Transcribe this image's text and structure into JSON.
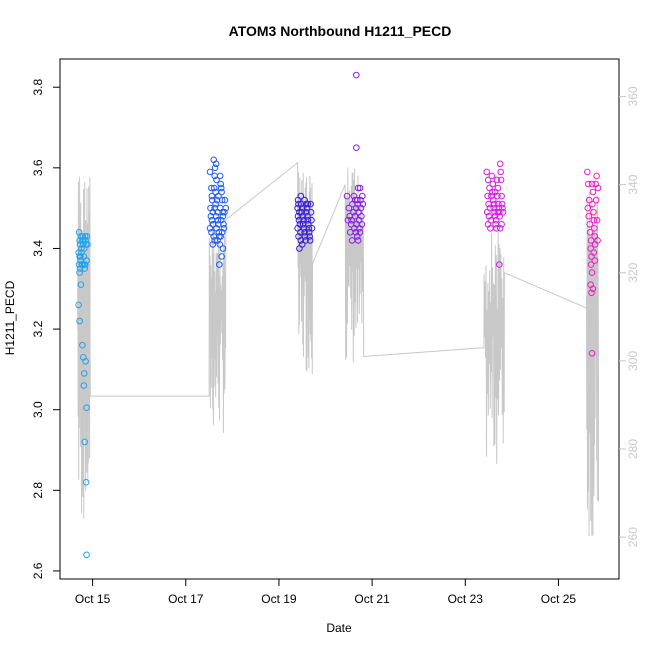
{
  "chart_data": {
    "type": "scatter",
    "title": "ATOM3 Northbound H1211_PECD",
    "xlabel": "Date",
    "ylabel": "H1211_PECD",
    "x_range_days": [
      14.3,
      26.3
    ],
    "x_ticks": [
      {
        "day": 15,
        "label": "Oct 15"
      },
      {
        "day": 17,
        "label": "Oct 17"
      },
      {
        "day": 19,
        "label": "Oct 19"
      },
      {
        "day": 21,
        "label": "Oct 21"
      },
      {
        "day": 23,
        "label": "Oct 23"
      },
      {
        "day": 25,
        "label": "Oct 25"
      }
    ],
    "ylim": [
      2.58,
      3.87
    ],
    "y_ticks": [
      "2.6",
      "2.8",
      "3.0",
      "3.2",
      "3.4",
      "3.6",
      "3.8"
    ],
    "y2lim": [
      250.5,
      368.5
    ],
    "y2_ticks": [
      "260",
      "280",
      "300",
      "320",
      "340",
      "360"
    ],
    "grid": false,
    "series": [
      {
        "color": "#1fa3ee",
        "points": [
          [
            14.71,
            3.44
          ],
          [
            14.72,
            3.42
          ],
          [
            14.73,
            3.41
          ],
          [
            14.7,
            3.39
          ],
          [
            14.72,
            3.38
          ],
          [
            14.74,
            3.37
          ],
          [
            14.71,
            3.36
          ],
          [
            14.73,
            3.35
          ],
          [
            14.75,
            3.43
          ],
          [
            14.76,
            3.4
          ],
          [
            14.77,
            3.36
          ],
          [
            14.78,
            3.42
          ],
          [
            14.79,
            3.43
          ],
          [
            14.8,
            3.41
          ],
          [
            14.81,
            3.38
          ],
          [
            14.82,
            3.36
          ],
          [
            14.83,
            3.35
          ],
          [
            14.84,
            3.43
          ],
          [
            14.85,
            3.42
          ],
          [
            14.86,
            3.41
          ],
          [
            14.87,
            3.37
          ],
          [
            14.88,
            3.43
          ],
          [
            14.89,
            3.41
          ],
          [
            14.72,
            3.34
          ],
          [
            14.74,
            3.38
          ],
          [
            14.76,
            3.39
          ],
          [
            14.78,
            3.36
          ],
          [
            14.8,
            3.42
          ],
          [
            14.82,
            3.4
          ],
          [
            14.84,
            3.36
          ],
          [
            14.7,
            3.26
          ],
          [
            14.72,
            3.22
          ],
          [
            14.75,
            3.31
          ],
          [
            14.78,
            3.16
          ],
          [
            14.8,
            3.13
          ],
          [
            14.82,
            3.09
          ],
          [
            14.81,
            3.06
          ],
          [
            14.85,
            3.12
          ],
          [
            14.87,
            3.005
          ],
          [
            14.83,
            2.92
          ],
          [
            14.86,
            2.82
          ],
          [
            14.87,
            2.64
          ]
        ]
      },
      {
        "color": "#1f5cf2",
        "points": [
          [
            17.52,
            3.59
          ],
          [
            17.55,
            3.55
          ],
          [
            17.57,
            3.52
          ],
          [
            17.53,
            3.5
          ],
          [
            17.58,
            3.49
          ],
          [
            17.54,
            3.48
          ],
          [
            17.56,
            3.47
          ],
          [
            17.59,
            3.46
          ],
          [
            17.52,
            3.45
          ],
          [
            17.55,
            3.44
          ],
          [
            17.6,
            3.43
          ],
          [
            17.62,
            3.42
          ],
          [
            17.58,
            3.41
          ],
          [
            17.61,
            3.55
          ],
          [
            17.63,
            3.6
          ],
          [
            17.6,
            3.62
          ],
          [
            17.65,
            3.61
          ],
          [
            17.66,
            3.57
          ],
          [
            17.64,
            3.54
          ],
          [
            17.67,
            3.52
          ],
          [
            17.62,
            3.5
          ],
          [
            17.68,
            3.49
          ],
          [
            17.65,
            3.48
          ],
          [
            17.69,
            3.47
          ],
          [
            17.7,
            3.46
          ],
          [
            17.66,
            3.45
          ],
          [
            17.71,
            3.44
          ],
          [
            17.72,
            3.43
          ],
          [
            17.68,
            3.42
          ],
          [
            17.73,
            3.41
          ],
          [
            17.74,
            3.58
          ],
          [
            17.75,
            3.56
          ],
          [
            17.76,
            3.55
          ],
          [
            17.77,
            3.54
          ],
          [
            17.78,
            3.52
          ],
          [
            17.74,
            3.5
          ],
          [
            17.79,
            3.49
          ],
          [
            17.8,
            3.48
          ],
          [
            17.76,
            3.47
          ],
          [
            17.81,
            3.46
          ],
          [
            17.82,
            3.45
          ],
          [
            17.78,
            3.44
          ],
          [
            17.75,
            3.43
          ],
          [
            17.8,
            3.4
          ],
          [
            17.77,
            3.38
          ],
          [
            17.72,
            3.36
          ],
          [
            17.84,
            3.52
          ],
          [
            17.86,
            3.5
          ],
          [
            17.83,
            3.49
          ],
          [
            17.62,
            3.58
          ],
          [
            17.56,
            3.53
          ],
          [
            17.7,
            3.53
          ],
          [
            17.64,
            3.51
          ],
          [
            17.58,
            3.46
          ]
        ]
      },
      {
        "color": "#3a1fd2",
        "points": [
          [
            19.4,
            3.5
          ],
          [
            19.42,
            3.51
          ],
          [
            19.44,
            3.49
          ],
          [
            19.41,
            3.48
          ],
          [
            19.43,
            3.47
          ],
          [
            19.45,
            3.46
          ],
          [
            19.4,
            3.45
          ],
          [
            19.46,
            3.44
          ],
          [
            19.42,
            3.43
          ],
          [
            19.47,
            3.42
          ],
          [
            19.48,
            3.51
          ],
          [
            19.5,
            3.5
          ],
          [
            19.49,
            3.49
          ],
          [
            19.51,
            3.48
          ],
          [
            19.53,
            3.47
          ],
          [
            19.52,
            3.46
          ],
          [
            19.54,
            3.45
          ],
          [
            19.55,
            3.44
          ],
          [
            19.56,
            3.43
          ],
          [
            19.57,
            3.42
          ],
          [
            19.58,
            3.51
          ],
          [
            19.6,
            3.5
          ],
          [
            19.59,
            3.49
          ],
          [
            19.61,
            3.48
          ],
          [
            19.62,
            3.47
          ],
          [
            19.63,
            3.46
          ],
          [
            19.64,
            3.45
          ],
          [
            19.65,
            3.44
          ],
          [
            19.66,
            3.43
          ],
          [
            19.67,
            3.42
          ],
          [
            19.68,
            3.51
          ],
          [
            19.69,
            3.49
          ],
          [
            19.7,
            3.47
          ],
          [
            19.71,
            3.45
          ],
          [
            19.44,
            3.4
          ],
          [
            19.5,
            3.41
          ],
          [
            19.41,
            3.52
          ],
          [
            19.55,
            3.52
          ],
          [
            19.62,
            3.51
          ],
          [
            19.47,
            3.53
          ]
        ]
      },
      {
        "color": "#8a1fe8",
        "points": [
          [
            20.46,
            3.53
          ],
          [
            20.5,
            3.5
          ],
          [
            20.52,
            3.48
          ],
          [
            20.55,
            3.46
          ],
          [
            20.53,
            3.44
          ],
          [
            20.57,
            3.42
          ],
          [
            20.58,
            3.51
          ],
          [
            20.6,
            3.49
          ],
          [
            20.56,
            3.47
          ],
          [
            20.62,
            3.45
          ],
          [
            20.64,
            3.52
          ],
          [
            20.66,
            3.5
          ],
          [
            20.63,
            3.48
          ],
          [
            20.67,
            3.46
          ],
          [
            20.65,
            3.44
          ],
          [
            20.68,
            3.43
          ],
          [
            20.7,
            3.42
          ],
          [
            20.69,
            3.51
          ],
          [
            20.71,
            3.49
          ],
          [
            20.72,
            3.47
          ],
          [
            20.73,
            3.45
          ],
          [
            20.74,
            3.44
          ],
          [
            20.75,
            3.52
          ],
          [
            20.76,
            3.5
          ],
          [
            20.77,
            3.48
          ],
          [
            20.78,
            3.46
          ],
          [
            20.79,
            3.53
          ],
          [
            20.8,
            3.51
          ],
          [
            20.74,
            3.55
          ],
          [
            20.7,
            3.55
          ],
          [
            20.66,
            3.65
          ],
          [
            20.66,
            3.83
          ],
          [
            20.48,
            3.47
          ],
          [
            20.61,
            3.53
          ],
          [
            20.68,
            3.52
          ]
        ]
      },
      {
        "color": "#d21fe0",
        "points": [
          [
            23.46,
            3.59
          ],
          [
            23.49,
            3.57
          ],
          [
            23.52,
            3.55
          ],
          [
            23.48,
            3.53
          ],
          [
            23.5,
            3.51
          ],
          [
            23.53,
            3.5
          ],
          [
            23.47,
            3.49
          ],
          [
            23.51,
            3.48
          ],
          [
            23.55,
            3.47
          ],
          [
            23.49,
            3.46
          ],
          [
            23.54,
            3.45
          ],
          [
            23.57,
            3.58
          ],
          [
            23.59,
            3.56
          ],
          [
            23.58,
            3.54
          ],
          [
            23.6,
            3.52
          ],
          [
            23.62,
            3.51
          ],
          [
            23.61,
            3.5
          ],
          [
            23.63,
            3.49
          ],
          [
            23.64,
            3.48
          ],
          [
            23.66,
            3.47
          ],
          [
            23.65,
            3.46
          ],
          [
            23.67,
            3.45
          ],
          [
            23.68,
            3.57
          ],
          [
            23.7,
            3.55
          ],
          [
            23.69,
            3.53
          ],
          [
            23.71,
            3.51
          ],
          [
            23.72,
            3.5
          ],
          [
            23.73,
            3.49
          ],
          [
            23.74,
            3.48
          ],
          [
            23.75,
            3.61
          ],
          [
            23.76,
            3.59
          ],
          [
            23.77,
            3.57
          ],
          [
            23.78,
            3.53
          ],
          [
            23.79,
            3.51
          ],
          [
            23.8,
            3.5
          ],
          [
            23.81,
            3.49
          ],
          [
            23.73,
            3.36
          ],
          [
            23.75,
            3.45
          ],
          [
            23.78,
            3.46
          ],
          [
            23.56,
            3.53
          ],
          [
            23.64,
            3.54
          ],
          [
            23.7,
            3.49
          ]
        ]
      },
      {
        "color": "#ee1fc8",
        "points": [
          [
            25.62,
            3.59
          ],
          [
            25.64,
            3.56
          ],
          [
            25.66,
            3.52
          ],
          [
            25.63,
            3.5
          ],
          [
            25.65,
            3.48
          ],
          [
            25.67,
            3.46
          ],
          [
            25.68,
            3.44
          ],
          [
            25.7,
            3.42
          ],
          [
            25.69,
            3.4
          ],
          [
            25.71,
            3.38
          ],
          [
            25.72,
            3.56
          ],
          [
            25.74,
            3.54
          ],
          [
            25.73,
            3.51
          ],
          [
            25.75,
            3.49
          ],
          [
            25.76,
            3.47
          ],
          [
            25.77,
            3.45
          ],
          [
            25.78,
            3.43
          ],
          [
            25.79,
            3.41
          ],
          [
            25.8,
            3.56
          ],
          [
            25.82,
            3.58
          ],
          [
            25.81,
            3.52
          ],
          [
            25.83,
            3.47
          ],
          [
            25.84,
            3.42
          ],
          [
            25.85,
            3.55
          ],
          [
            25.7,
            3.36
          ],
          [
            25.72,
            3.34
          ],
          [
            25.69,
            3.31
          ],
          [
            25.74,
            3.3
          ],
          [
            25.71,
            3.29
          ],
          [
            25.72,
            3.14
          ],
          [
            25.76,
            3.39
          ],
          [
            25.78,
            3.37
          ]
        ]
      }
    ],
    "overlay_color": "#c8c8c8",
    "overlay_blocks": [
      {
        "day_start": 14.68,
        "day_end": 14.95,
        "lo": 262,
        "hi": 344,
        "entry": 307,
        "exit": 292
      },
      {
        "day_start": 17.5,
        "day_end": 17.86,
        "lo": 283,
        "hi": 332,
        "entry": 292,
        "exit": 332
      },
      {
        "day_start": 19.4,
        "day_end": 19.72,
        "lo": 297,
        "hi": 343,
        "entry": 345,
        "exit": 322
      },
      {
        "day_start": 20.42,
        "day_end": 20.82,
        "lo": 298,
        "hi": 344,
        "entry": 340,
        "exit": 301
      },
      {
        "day_start": 23.4,
        "day_end": 23.84,
        "lo": 276,
        "hi": 330,
        "entry": 303,
        "exit": 320
      },
      {
        "day_start": 25.6,
        "day_end": 25.86,
        "lo": 259,
        "hi": 340,
        "entry": 312,
        "exit": 268
      }
    ]
  }
}
